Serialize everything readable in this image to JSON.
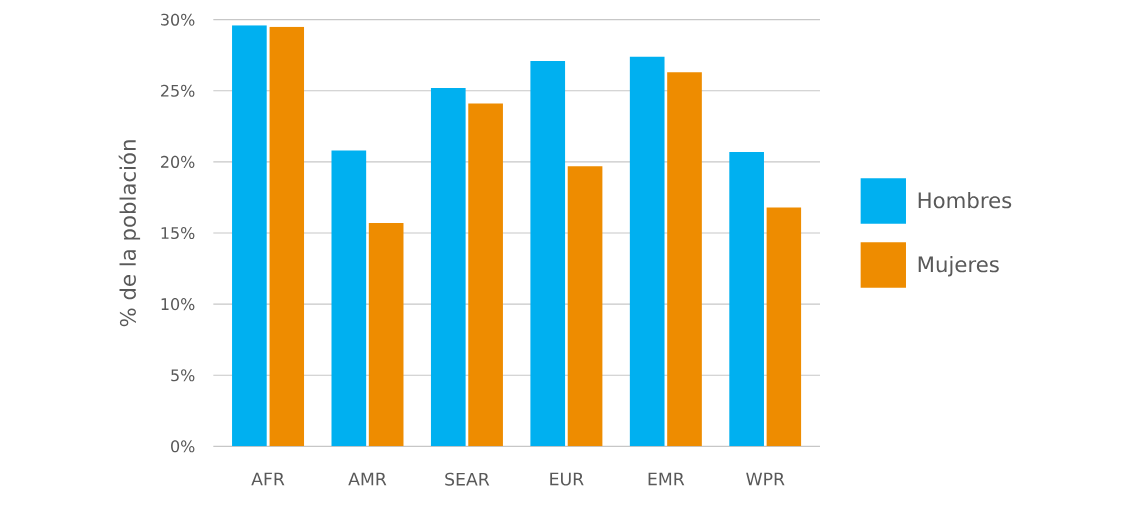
{
  "chart_data": {
    "type": "bar",
    "ylabel": "% de la población",
    "categories": [
      "AFR",
      "AMR",
      "SEAR",
      "EUR",
      "EMR",
      "WPR"
    ],
    "series": [
      {
        "name": "Hombres",
        "color": "#00b0f0",
        "values": [
          29.6,
          20.8,
          25.2,
          27.1,
          27.4,
          20.7
        ]
      },
      {
        "name": "Mujeres",
        "color": "#ee8c00",
        "values": [
          29.5,
          15.7,
          24.1,
          19.7,
          26.3,
          16.8
        ]
      }
    ],
    "ylim": [
      0,
      30
    ],
    "yticks": [
      {
        "value": 0,
        "label": "0%"
      },
      {
        "value": 5,
        "label": "5%"
      },
      {
        "value": 10,
        "label": "10%"
      },
      {
        "value": 15,
        "label": "15%"
      },
      {
        "value": 20,
        "label": "20%"
      },
      {
        "value": 25,
        "label": "25%"
      },
      {
        "value": 30,
        "label": "30%"
      }
    ],
    "grid": "y",
    "legend": "right"
  }
}
